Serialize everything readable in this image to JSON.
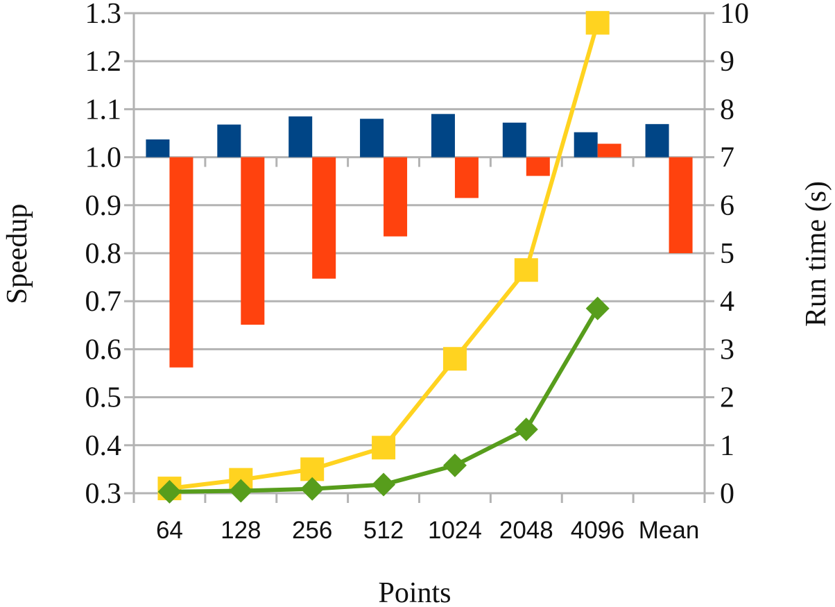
{
  "chart_data": {
    "type": "bar",
    "xlabel": "Points",
    "ylabel": "Speedup",
    "y2label": "Run time (s)",
    "categories": [
      "64",
      "128",
      "256",
      "512",
      "1024",
      "2048",
      "4096",
      "Mean"
    ],
    "ylim": [
      0.3,
      1.3
    ],
    "yticks": [
      "0.3",
      "0.4",
      "0.5",
      "0.6",
      "0.7",
      "0.8",
      "0.9",
      "1.0",
      "1.1",
      "1.2",
      "1.3"
    ],
    "y2lim": [
      0,
      10
    ],
    "y2ticks": [
      "0",
      "1",
      "2",
      "3",
      "4",
      "5",
      "6",
      "7",
      "8",
      "9",
      "10"
    ],
    "bar_baseline": 1.0,
    "grid": true,
    "legend": "none",
    "series": [
      {
        "type": "bar",
        "axis": "left",
        "color": "#004586",
        "values": [
          1.037,
          1.068,
          1.085,
          1.08,
          1.09,
          1.072,
          1.052,
          1.069
        ]
      },
      {
        "type": "bar",
        "axis": "left",
        "color": "#ff420e",
        "values": [
          0.562,
          0.651,
          0.747,
          0.835,
          0.915,
          0.961,
          1.028,
          0.8
        ]
      },
      {
        "type": "line",
        "axis": "right",
        "marker": "square",
        "color": "#ffd320",
        "values": [
          0.1,
          0.28,
          0.5,
          0.95,
          2.8,
          4.65,
          9.8,
          null
        ]
      },
      {
        "type": "line",
        "axis": "right",
        "marker": "diamond",
        "color": "#579d1c",
        "values": [
          0.03,
          0.05,
          0.09,
          0.18,
          0.58,
          1.33,
          3.85,
          null
        ]
      }
    ]
  }
}
